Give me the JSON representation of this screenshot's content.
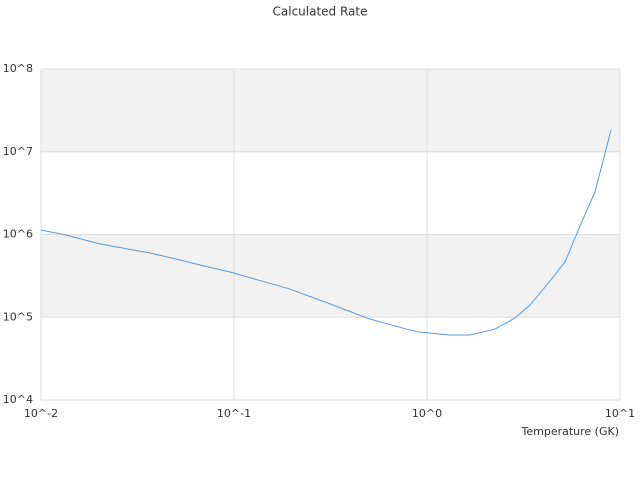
{
  "chart_data": {
    "type": "line",
    "title": "Calculated Rate",
    "x_label": "Temperature (GK)",
    "x_log": true,
    "y_log": true,
    "xlim": [
      0.01,
      10
    ],
    "ylim": [
      10000,
      100000000
    ],
    "xticks": [
      {
        "value": 0.01,
        "label": "10^-2"
      },
      {
        "value": 0.1,
        "label": "10^-1"
      },
      {
        "value": 1,
        "label": "10^0"
      },
      {
        "value": 10,
        "label": "10^1"
      }
    ],
    "yticks": [
      {
        "value": 10000,
        "label": "10^4"
      },
      {
        "value": 100000,
        "label": "10^5"
      },
      {
        "value": 1000000,
        "label": "10^6"
      },
      {
        "value": 10000000,
        "label": "10^7"
      },
      {
        "value": 100000000,
        "label": "10^8"
      }
    ],
    "band_color": "#f2f2f2",
    "grid_color": "#dddddd",
    "x": [
      0.01,
      0.01285,
      0.0202,
      0.0367,
      0.05,
      0.0667,
      0.0953,
      0.195,
      0.314,
      0.507,
      0.817,
      0.92,
      1.316,
      1.67,
      2.25,
      2.86,
      3.42,
      4.09,
      5.19,
      6.21,
      7.42,
      8.98
    ],
    "series": [
      {
        "color": "#5b9bd5",
        "values": [
          1130000,
          1010000,
          770000,
          597000,
          506000,
          428000,
          352000,
          219000,
          145000,
          95000,
          70000,
          66000,
          61000,
          61000,
          72000,
          98000,
          141000,
          232000,
          466000,
          1270000,
          3270000,
          18300000
        ]
      }
    ]
  }
}
